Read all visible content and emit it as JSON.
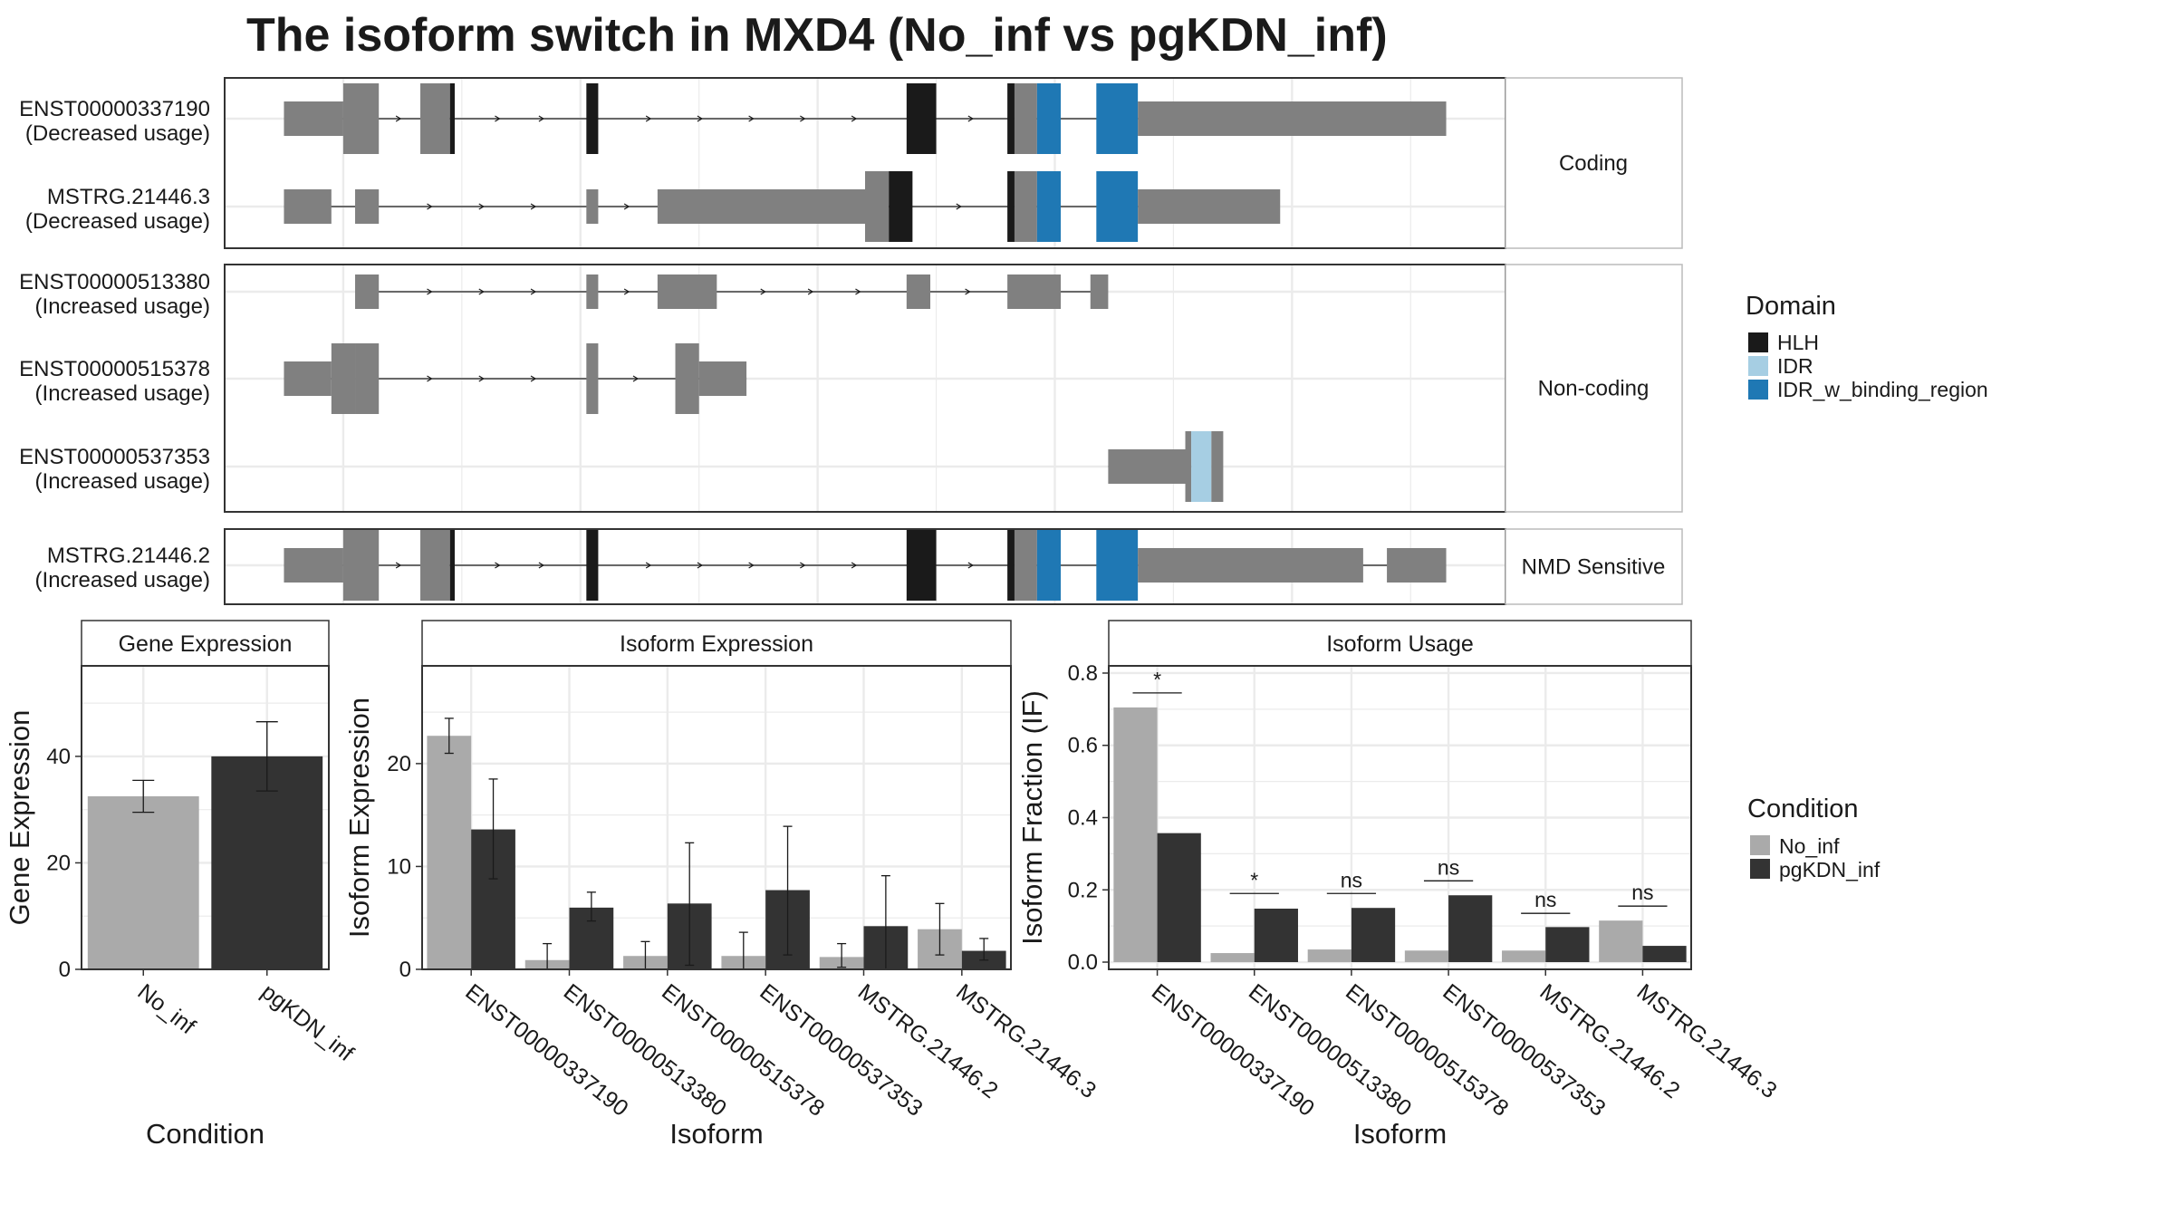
{
  "title": "The isoform switch in MXD4 (No_inf vs pgKDN_inf)",
  "colors": {
    "exon": "#808080",
    "HLH": "#1a1a1a",
    "IDR": "#a6cee3",
    "IDR_w_binding_region": "#1f78b4",
    "No_inf": "#aaaaaa",
    "pgKDN_inf": "#333333",
    "grid": "#ebebeb",
    "strip": "#ffffff",
    "panel_border": "#333333"
  },
  "legends": {
    "domain": {
      "title": "Domain",
      "items": [
        {
          "label": "HLH",
          "color": "#1a1a1a"
        },
        {
          "label": "IDR",
          "color": "#a6cee3"
        },
        {
          "label": "IDR_w_binding_region",
          "color": "#1f78b4"
        }
      ]
    },
    "condition": {
      "title": "Condition",
      "items": [
        {
          "label": "No_inf",
          "color": "#aaaaaa"
        },
        {
          "label": "pgKDN_inf",
          "color": "#333333"
        }
      ]
    }
  },
  "transcripts": {
    "groups": [
      {
        "label": "Coding",
        "transcripts": [
          {
            "id": "ENST00000337190",
            "usage": "(Decreased usage)",
            "line": [
              5,
              97
            ],
            "exons": [
              {
                "s": 5,
                "e": 10,
                "k": "utr"
              },
              {
                "s": 10,
                "e": 13,
                "k": "cds"
              },
              {
                "s": 16.5,
                "e": 19,
                "k": "cds"
              },
              {
                "s": 19,
                "e": 19.4,
                "k": "HLH"
              },
              {
                "s": 30.5,
                "e": 31.5,
                "k": "HLH"
              },
              {
                "s": 57.5,
                "e": 60,
                "k": "HLH"
              },
              {
                "s": 66,
                "e": 66.6,
                "k": "HLH"
              },
              {
                "s": 66.6,
                "e": 68.5,
                "k": "cds"
              },
              {
                "s": 68.5,
                "e": 70.5,
                "k": "IDR_w_binding_region"
              },
              {
                "s": 73.5,
                "e": 77,
                "k": "IDR_w_binding_region"
              },
              {
                "s": 77,
                "e": 103,
                "k": "utr"
              }
            ]
          },
          {
            "id": "MSTRG.21446.3",
            "usage": "(Decreased usage)",
            "line": [
              5,
              84
            ],
            "exons": [
              {
                "s": 5,
                "e": 9,
                "k": "utr"
              },
              {
                "s": 11,
                "e": 13,
                "k": "utr"
              },
              {
                "s": 30.5,
                "e": 31.5,
                "k": "utr"
              },
              {
                "s": 36.5,
                "e": 54,
                "k": "utr"
              },
              {
                "s": 54,
                "e": 56,
                "k": "cds"
              },
              {
                "s": 56,
                "e": 58,
                "k": "HLH"
              },
              {
                "s": 66,
                "e": 66.6,
                "k": "HLH"
              },
              {
                "s": 66.6,
                "e": 68.5,
                "k": "cds"
              },
              {
                "s": 68.5,
                "e": 70.5,
                "k": "IDR_w_binding_region"
              },
              {
                "s": 73.5,
                "e": 77,
                "k": "IDR_w_binding_region"
              },
              {
                "s": 77,
                "e": 89,
                "k": "utr"
              }
            ]
          }
        ]
      },
      {
        "label": "Non-coding",
        "transcripts": [
          {
            "id": "ENST00000513380",
            "usage": "(Increased usage)",
            "line": [
              11,
              74
            ],
            "exons": [
              {
                "s": 11,
                "e": 13,
                "k": "utr"
              },
              {
                "s": 30.5,
                "e": 31.5,
                "k": "utr"
              },
              {
                "s": 36.5,
                "e": 41.5,
                "k": "utr"
              },
              {
                "s": 57.5,
                "e": 59.5,
                "k": "utr"
              },
              {
                "s": 66,
                "e": 70.5,
                "k": "utr"
              },
              {
                "s": 73,
                "e": 74.5,
                "k": "utr"
              }
            ]
          },
          {
            "id": "ENST00000515378",
            "usage": "(Increased usage)",
            "line": [
              5,
              44
            ],
            "exons": [
              {
                "s": 5,
                "e": 9,
                "k": "utr"
              },
              {
                "s": 9,
                "e": 11,
                "k": "cds"
              },
              {
                "s": 11,
                "e": 13,
                "k": "cds"
              },
              {
                "s": 30.5,
                "e": 31.5,
                "k": "cds"
              },
              {
                "s": 38,
                "e": 40,
                "k": "cds"
              },
              {
                "s": 40,
                "e": 44,
                "k": "utr"
              }
            ]
          },
          {
            "id": "ENST00000537353",
            "usage": "(Increased usage)",
            "line": [
              74.5,
              83
            ],
            "exons": [
              {
                "s": 74.5,
                "e": 81,
                "k": "utr"
              },
              {
                "s": 81,
                "e": 81.5,
                "k": "cds"
              },
              {
                "s": 81.5,
                "e": 83.2,
                "k": "IDR"
              },
              {
                "s": 83.2,
                "e": 84.2,
                "k": "cds"
              }
            ]
          }
        ]
      },
      {
        "label": "NMD Sensitive",
        "transcripts": [
          {
            "id": "MSTRG.21446.2",
            "usage": "(Increased usage)",
            "line": [
              5,
              103
            ],
            "exons": [
              {
                "s": 5,
                "e": 10,
                "k": "utr"
              },
              {
                "s": 10,
                "e": 13,
                "k": "cds"
              },
              {
                "s": 16.5,
                "e": 19,
                "k": "cds"
              },
              {
                "s": 19,
                "e": 19.4,
                "k": "HLH"
              },
              {
                "s": 30.5,
                "e": 31.5,
                "k": "HLH"
              },
              {
                "s": 57.5,
                "e": 60,
                "k": "HLH"
              },
              {
                "s": 66,
                "e": 66.6,
                "k": "HLH"
              },
              {
                "s": 66.6,
                "e": 68.5,
                "k": "cds"
              },
              {
                "s": 68.5,
                "e": 70.5,
                "k": "IDR_w_binding_region"
              },
              {
                "s": 73.5,
                "e": 77,
                "k": "IDR_w_binding_region"
              },
              {
                "s": 77,
                "e": 96,
                "k": "utr"
              },
              {
                "s": 98,
                "e": 103,
                "k": "utr"
              }
            ]
          }
        ]
      }
    ]
  },
  "chart_data": [
    {
      "type": "bar",
      "title": "Gene Expression",
      "xlabel": "Condition",
      "ylabel": "Gene Expression",
      "categories": [
        "No_inf",
        "pgKDN_inf"
      ],
      "values": [
        32.5,
        40
      ],
      "error_low": [
        29.5,
        33.5
      ],
      "error_high": [
        35.5,
        46.5
      ],
      "ylim": [
        0,
        57
      ],
      "yticks": [
        0,
        20,
        40
      ]
    },
    {
      "type": "bar",
      "title": "Isoform Expression",
      "xlabel": "Isoform",
      "ylabel": "Isoform Expression",
      "categories": [
        "ENST00000337190",
        "ENST00000513380",
        "ENST00000515378",
        "ENST00000537353",
        "MSTRG.21446.2",
        "MSTRG.21446.3"
      ],
      "series": [
        {
          "name": "No_inf",
          "values": [
            22.7,
            0.9,
            1.3,
            1.3,
            1.2,
            3.9
          ],
          "error_low": [
            21.0,
            0.0,
            0.0,
            0.0,
            0.2,
            1.4
          ],
          "error_high": [
            24.4,
            2.5,
            2.7,
            3.6,
            2.5,
            6.4
          ]
        },
        {
          "name": "pgKDN_inf",
          "values": [
            13.6,
            6.0,
            6.4,
            7.7,
            4.2,
            1.8
          ],
          "error_low": [
            8.8,
            4.7,
            0.4,
            1.4,
            0.0,
            0.9
          ],
          "error_high": [
            18.5,
            7.5,
            12.3,
            13.9,
            9.1,
            3.0
          ]
        }
      ],
      "ylim": [
        0,
        29.5
      ],
      "yticks": [
        0,
        10,
        20
      ]
    },
    {
      "type": "bar",
      "title": "Isoform Usage",
      "xlabel": "Isoform",
      "ylabel": "Isoform Fraction (IF)",
      "categories": [
        "ENST00000337190",
        "ENST00000513380",
        "ENST00000515378",
        "ENST00000537353",
        "MSTRG.21446.2",
        "MSTRG.21446.3"
      ],
      "series": [
        {
          "name": "No_inf",
          "values": [
            0.705,
            0.025,
            0.035,
            0.032,
            0.032,
            0.115
          ]
        },
        {
          "name": "pgKDN_inf",
          "values": [
            0.357,
            0.148,
            0.15,
            0.185,
            0.097,
            0.045
          ]
        }
      ],
      "significance": [
        "*",
        "*",
        "ns",
        "ns",
        "ns",
        "ns"
      ],
      "sig_y": [
        0.745,
        0.19,
        0.19,
        0.225,
        0.135,
        0.155
      ],
      "ylim": [
        -0.02,
        0.82
      ],
      "yticks": [
        0.0,
        0.2,
        0.4,
        0.6,
        0.8
      ],
      "ytick_labels": [
        "0.0",
        "0.2",
        "0.4",
        "0.6",
        "0.8"
      ]
    }
  ]
}
